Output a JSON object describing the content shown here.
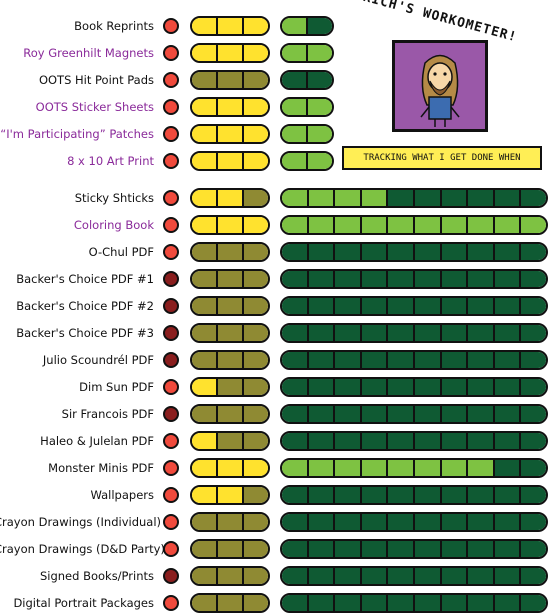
{
  "header": {
    "title": "RICH'S WORKOMETER!",
    "tagline": "TRACKING WHAT I GET DONE WHEN"
  },
  "colors": {
    "red": "#f04a3c",
    "darkred": "#8a1e1e",
    "yellow": "#ffe22e",
    "olive": "#8f8a33",
    "lightgreen": "#7ec242",
    "darkgreen": "#0f5a33"
  },
  "projects": [
    {
      "label": "Book Reprints",
      "purple": false,
      "dot": "red",
      "stage": [
        "yellow",
        "yellow",
        "yellow"
      ],
      "progress": [
        "lightgreen",
        "darkgreen"
      ]
    },
    {
      "label": "Roy Greenhilt Magnets",
      "purple": true,
      "dot": "red",
      "stage": [
        "yellow",
        "yellow",
        "yellow"
      ],
      "progress": [
        "lightgreen",
        "lightgreen"
      ]
    },
    {
      "label": "OOTS Hit Point Pads",
      "purple": false,
      "dot": "red",
      "stage": [
        "olive",
        "olive",
        "olive"
      ],
      "progress": [
        "darkgreen",
        "darkgreen"
      ]
    },
    {
      "label": "OOTS Sticker Sheets",
      "purple": true,
      "dot": "red",
      "stage": [
        "yellow",
        "yellow",
        "yellow"
      ],
      "progress": [
        "lightgreen",
        "lightgreen"
      ]
    },
    {
      "label": "“I'm Participating” Patches",
      "purple": true,
      "dot": "red",
      "stage": [
        "yellow",
        "yellow",
        "yellow"
      ],
      "progress": [
        "lightgreen",
        "lightgreen"
      ]
    },
    {
      "label": "8 x 10 Art Print",
      "purple": true,
      "dot": "red",
      "stage": [
        "yellow",
        "yellow",
        "yellow"
      ],
      "progress": [
        "lightgreen",
        "lightgreen"
      ]
    },
    {
      "label": "Sticky Shticks",
      "purple": false,
      "dot": "red",
      "stage": [
        "yellow",
        "yellow",
        "olive"
      ],
      "progress": [
        "lightgreen",
        "lightgreen",
        "lightgreen",
        "lightgreen",
        "darkgreen",
        "darkgreen",
        "darkgreen",
        "darkgreen",
        "darkgreen",
        "darkgreen"
      ]
    },
    {
      "label": "Coloring Book",
      "purple": true,
      "dot": "red",
      "stage": [
        "yellow",
        "yellow",
        "yellow"
      ],
      "progress": [
        "lightgreen",
        "lightgreen",
        "lightgreen",
        "lightgreen",
        "lightgreen",
        "lightgreen",
        "lightgreen",
        "lightgreen",
        "lightgreen",
        "lightgreen"
      ]
    },
    {
      "label": "O-Chul PDF",
      "purple": false,
      "dot": "red",
      "stage": [
        "olive",
        "olive",
        "olive"
      ],
      "progress": [
        "darkgreen",
        "darkgreen",
        "darkgreen",
        "darkgreen",
        "darkgreen",
        "darkgreen",
        "darkgreen",
        "darkgreen",
        "darkgreen",
        "darkgreen"
      ]
    },
    {
      "label": "Backer's Choice PDF #1",
      "purple": false,
      "dot": "darkred",
      "stage": [
        "olive",
        "olive",
        "olive"
      ],
      "progress": [
        "darkgreen",
        "darkgreen",
        "darkgreen",
        "darkgreen",
        "darkgreen",
        "darkgreen",
        "darkgreen",
        "darkgreen",
        "darkgreen",
        "darkgreen"
      ]
    },
    {
      "label": "Backer's Choice PDF #2",
      "purple": false,
      "dot": "darkred",
      "stage": [
        "olive",
        "olive",
        "olive"
      ],
      "progress": [
        "darkgreen",
        "darkgreen",
        "darkgreen",
        "darkgreen",
        "darkgreen",
        "darkgreen",
        "darkgreen",
        "darkgreen",
        "darkgreen",
        "darkgreen"
      ]
    },
    {
      "label": "Backer's Choice PDF #3",
      "purple": false,
      "dot": "darkred",
      "stage": [
        "olive",
        "olive",
        "olive"
      ],
      "progress": [
        "darkgreen",
        "darkgreen",
        "darkgreen",
        "darkgreen",
        "darkgreen",
        "darkgreen",
        "darkgreen",
        "darkgreen",
        "darkgreen",
        "darkgreen"
      ]
    },
    {
      "label": "Julio Scoundrél PDF",
      "purple": false,
      "dot": "darkred",
      "stage": [
        "olive",
        "olive",
        "olive"
      ],
      "progress": [
        "darkgreen",
        "darkgreen",
        "darkgreen",
        "darkgreen",
        "darkgreen",
        "darkgreen",
        "darkgreen",
        "darkgreen",
        "darkgreen",
        "darkgreen"
      ]
    },
    {
      "label": "Dim Sun PDF",
      "purple": false,
      "dot": "red",
      "stage": [
        "yellow",
        "olive",
        "olive"
      ],
      "progress": [
        "darkgreen",
        "darkgreen",
        "darkgreen",
        "darkgreen",
        "darkgreen",
        "darkgreen",
        "darkgreen",
        "darkgreen",
        "darkgreen",
        "darkgreen"
      ]
    },
    {
      "label": "Sir Francois  PDF",
      "purple": false,
      "dot": "darkred",
      "stage": [
        "olive",
        "olive",
        "olive"
      ],
      "progress": [
        "darkgreen",
        "darkgreen",
        "darkgreen",
        "darkgreen",
        "darkgreen",
        "darkgreen",
        "darkgreen",
        "darkgreen",
        "darkgreen",
        "darkgreen"
      ]
    },
    {
      "label": "Haleo & Julelan PDF",
      "purple": false,
      "dot": "red",
      "stage": [
        "yellow",
        "olive",
        "olive"
      ],
      "progress": [
        "darkgreen",
        "darkgreen",
        "darkgreen",
        "darkgreen",
        "darkgreen",
        "darkgreen",
        "darkgreen",
        "darkgreen",
        "darkgreen",
        "darkgreen"
      ]
    },
    {
      "label": "Monster Minis PDF",
      "purple": false,
      "dot": "red",
      "stage": [
        "yellow",
        "yellow",
        "yellow"
      ],
      "progress": [
        "lightgreen",
        "lightgreen",
        "lightgreen",
        "lightgreen",
        "lightgreen",
        "lightgreen",
        "lightgreen",
        "lightgreen",
        "darkgreen",
        "darkgreen"
      ]
    },
    {
      "label": "Wallpapers",
      "purple": false,
      "dot": "red",
      "stage": [
        "yellow",
        "yellow",
        "olive"
      ],
      "progress": [
        "darkgreen",
        "darkgreen",
        "darkgreen",
        "darkgreen",
        "darkgreen",
        "darkgreen",
        "darkgreen",
        "darkgreen",
        "darkgreen",
        "darkgreen"
      ]
    },
    {
      "label": "Crayon Drawings (Individual)",
      "purple": false,
      "dot": "red",
      "stage": [
        "olive",
        "olive",
        "olive"
      ],
      "progress": [
        "darkgreen",
        "darkgreen",
        "darkgreen",
        "darkgreen",
        "darkgreen",
        "darkgreen",
        "darkgreen",
        "darkgreen",
        "darkgreen",
        "darkgreen"
      ]
    },
    {
      "label": "Crayon Drawings (D&D Party)",
      "purple": false,
      "dot": "red",
      "stage": [
        "olive",
        "olive",
        "olive"
      ],
      "progress": [
        "darkgreen",
        "darkgreen",
        "darkgreen",
        "darkgreen",
        "darkgreen",
        "darkgreen",
        "darkgreen",
        "darkgreen",
        "darkgreen",
        "darkgreen"
      ]
    },
    {
      "label": "Signed Books/Prints",
      "purple": false,
      "dot": "darkred",
      "stage": [
        "olive",
        "olive",
        "olive"
      ],
      "progress": [
        "darkgreen",
        "darkgreen",
        "darkgreen",
        "darkgreen",
        "darkgreen",
        "darkgreen",
        "darkgreen",
        "darkgreen",
        "darkgreen",
        "darkgreen"
      ]
    },
    {
      "label": "Digital Portrait Packages",
      "purple": false,
      "dot": "red",
      "stage": [
        "olive",
        "olive",
        "olive"
      ],
      "progress": [
        "darkgreen",
        "darkgreen",
        "darkgreen",
        "darkgreen",
        "darkgreen",
        "darkgreen",
        "darkgreen",
        "darkgreen",
        "darkgreen",
        "darkgreen"
      ]
    }
  ]
}
